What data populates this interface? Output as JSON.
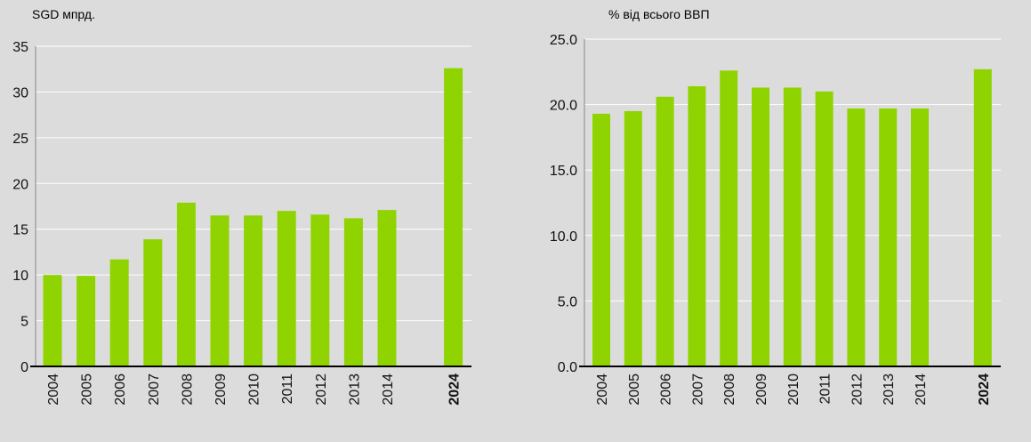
{
  "chart_data": [
    {
      "type": "bar",
      "unit_label": "SGD мпрд.",
      "categories": [
        "2004",
        "2005",
        "2006",
        "2007",
        "2008",
        "2009",
        "2010",
        "2011",
        "2012",
        "2013",
        "2014",
        "2024"
      ],
      "highlight_category": "2024",
      "values": [
        10.0,
        9.9,
        11.7,
        13.9,
        17.9,
        16.5,
        16.5,
        17.0,
        16.6,
        16.2,
        17.1,
        32.6
      ],
      "ylim": [
        0,
        35
      ],
      "yticks": [
        "0",
        "5",
        "10",
        "15",
        "20",
        "25",
        "30",
        "35"
      ],
      "grid": true,
      "bar_color": "#8fd400"
    },
    {
      "type": "bar",
      "unit_label": "% від всього ВВП",
      "categories": [
        "2004",
        "2005",
        "2006",
        "2007",
        "2008",
        "2009",
        "2010",
        "2011",
        "2012",
        "2013",
        "2014",
        "2024"
      ],
      "highlight_category": "2024",
      "values": [
        19.3,
        19.5,
        20.6,
        21.4,
        22.6,
        21.3,
        21.3,
        21.0,
        19.7,
        19.7,
        19.7,
        22.7
      ],
      "ylim": [
        0,
        25
      ],
      "yticks": [
        "0.0",
        "5.0",
        "10.0",
        "15.0",
        "20.0",
        "25.0"
      ],
      "grid": true,
      "bar_color": "#8fd400"
    }
  ]
}
